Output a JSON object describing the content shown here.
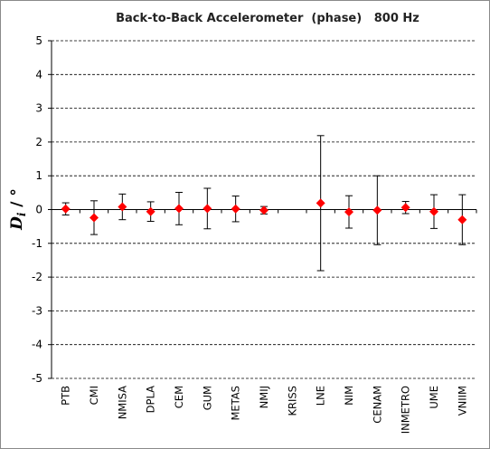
{
  "chart_data": {
    "type": "scatter",
    "title": "Back-to-Back Accelerometer  (phase)   800 Hz",
    "ylabel": {
      "symbol": "D",
      "subscript": "i",
      "unit": " / °"
    },
    "xlabel": "",
    "ylim": [
      -5,
      5
    ],
    "y_ticks": [
      5,
      4,
      3,
      2,
      1,
      0,
      -1,
      -2,
      -3,
      -4,
      -5
    ],
    "grid": "horizontal dashed",
    "categories": [
      "PTB",
      "CMI",
      "NMISA",
      "DPLA",
      "CEM",
      "GUM",
      "METAS",
      "NMIJ",
      "KRISS",
      "LNE",
      "NIM",
      "CENAM",
      "INMETRO",
      "UME",
      "VNIIM"
    ],
    "values": [
      0.02,
      -0.24,
      0.08,
      -0.06,
      0.03,
      0.03,
      0.02,
      -0.02,
      null,
      0.19,
      -0.07,
      -0.02,
      0.06,
      -0.06,
      -0.3
    ],
    "errors": [
      0.18,
      0.5,
      0.38,
      0.29,
      0.48,
      0.6,
      0.38,
      0.11,
      null,
      2.0,
      0.48,
      1.02,
      0.18,
      0.5,
      0.74
    ],
    "marker_color": "#ff0000",
    "errorbar_color": "#000000"
  }
}
